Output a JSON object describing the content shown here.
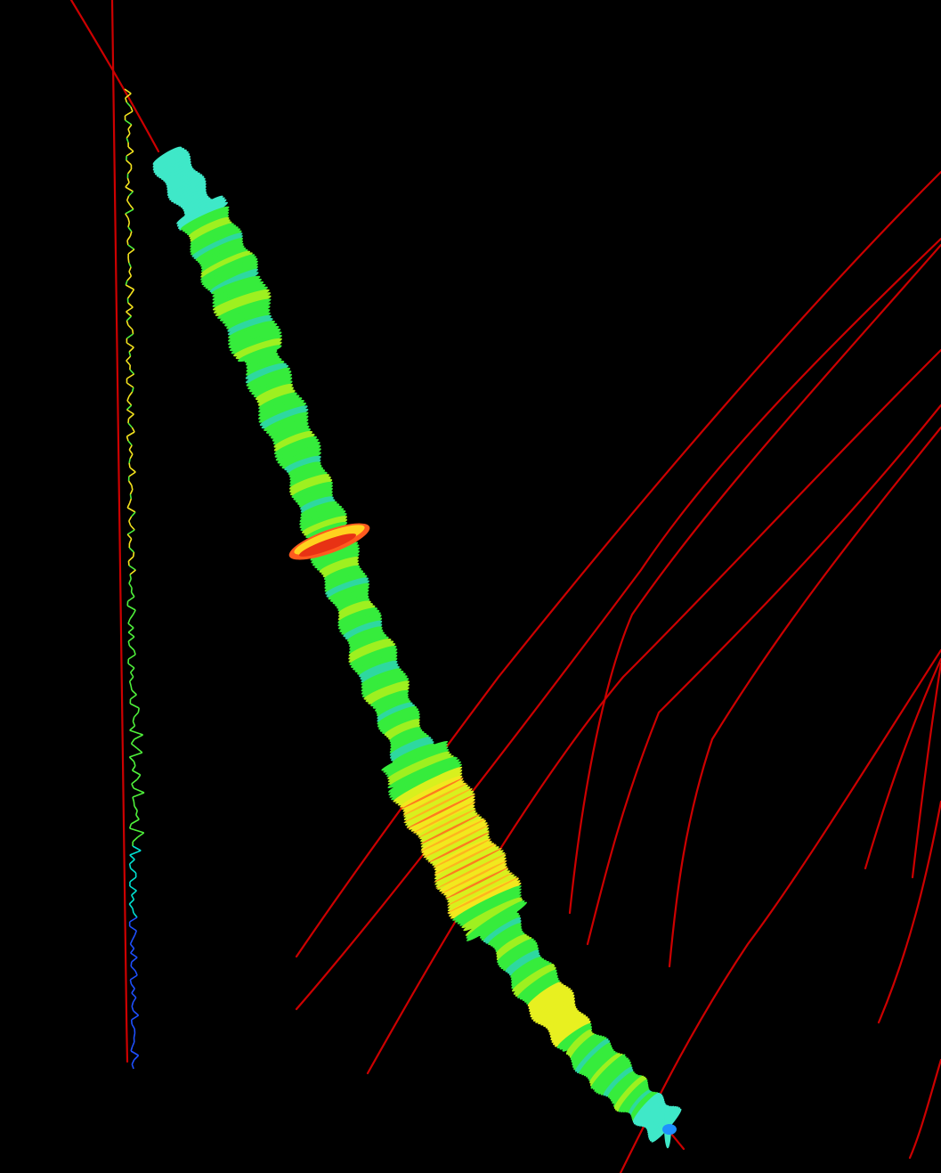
{
  "scene": {
    "description_visible_text": "",
    "background_color": "#000000",
    "trajectory_color": "#cc0000",
    "colormap": [
      "#1e60ff",
      "#00d2e6",
      "#2ee84a",
      "#9ef020",
      "#f2f000",
      "#ffb000",
      "#ff3a00"
    ],
    "main_well": {
      "base_color": "#36f04a",
      "top_color": "#3fe8c8",
      "bottom_tip_color": "#1e90ff",
      "notable_zones": [
        {
          "name": "red-flange-zone",
          "color": "#ff3a1e"
        },
        {
          "name": "yellow-interval",
          "color": "#f5e41e"
        }
      ]
    },
    "log_trace": {
      "colors": [
        "#f5e41e",
        "#4ef03a",
        "#00e0d0",
        "#1e50ff"
      ]
    }
  }
}
